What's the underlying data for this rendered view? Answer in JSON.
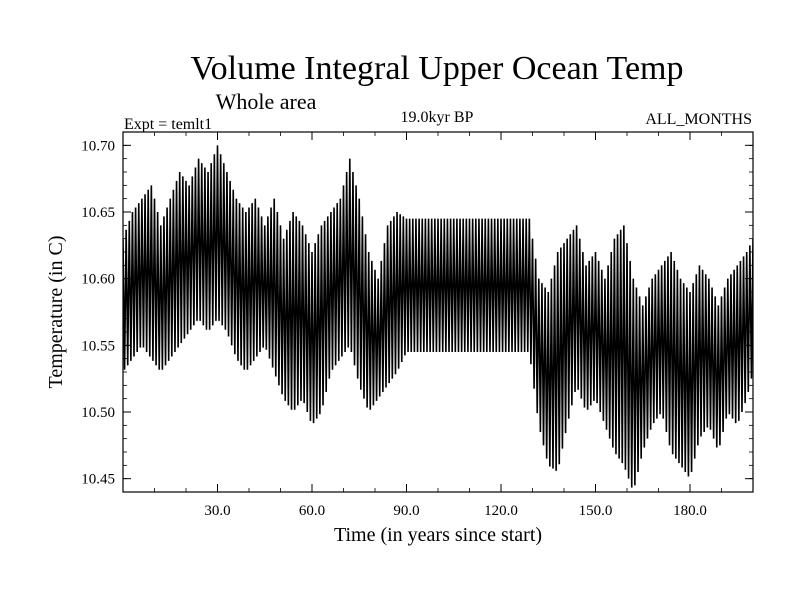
{
  "chart_data": {
    "type": "line",
    "title": "Volume Integral Upper Ocean Temp",
    "subtitle": "Whole area",
    "expt_label": "Expt = temlt1",
    "period_label": "19.0kyr BP",
    "months_label": "ALL_MONTHS",
    "xlabel": "Time (in years since start)",
    "ylabel": "Temperature (in C)",
    "xlim": [
      0,
      200
    ],
    "ylim": [
      10.44,
      10.71
    ],
    "grid": false,
    "legend": "none",
    "line_color": "#000000",
    "x_ticks": [
      {
        "value": 30,
        "label": "30.0"
      },
      {
        "value": 60,
        "label": "60.0"
      },
      {
        "value": 90,
        "label": "90.0"
      },
      {
        "value": 120,
        "label": "120.0"
      },
      {
        "value": 150,
        "label": "150.0"
      },
      {
        "value": 180,
        "label": "180.0"
      }
    ],
    "y_ticks": [
      {
        "value": 10.45,
        "label": "10.45"
      },
      {
        "value": 10.5,
        "label": "10.50"
      },
      {
        "value": 10.55,
        "label": "10.55"
      },
      {
        "value": 10.6,
        "label": "10.60"
      },
      {
        "value": 10.65,
        "label": "10.65"
      },
      {
        "value": 10.7,
        "label": "10.70"
      }
    ],
    "x": [
      0,
      3,
      6,
      9,
      12,
      15,
      18,
      21,
      24,
      27,
      30,
      33,
      36,
      39,
      42,
      45,
      48,
      51,
      54,
      57,
      60,
      63,
      66,
      69,
      72,
      75,
      78,
      81,
      84,
      87,
      90,
      93,
      96,
      99,
      102,
      105,
      108,
      111,
      114,
      117,
      120,
      123,
      126,
      129,
      132,
      135,
      138,
      141,
      144,
      147,
      150,
      153,
      156,
      159,
      162,
      165,
      168,
      171,
      174,
      177,
      180,
      183,
      186,
      189,
      192,
      195,
      198,
      200
    ],
    "y_max": [
      10.63,
      10.65,
      10.66,
      10.67,
      10.64,
      10.66,
      10.68,
      10.67,
      10.69,
      10.68,
      10.7,
      10.68,
      10.66,
      10.65,
      10.66,
      10.64,
      10.66,
      10.63,
      10.65,
      10.64,
      10.62,
      10.64,
      10.65,
      10.66,
      10.69,
      10.66,
      10.62,
      10.6,
      10.64,
      10.65,
      10.645,
      10.645,
      10.645,
      10.645,
      10.645,
      10.645,
      10.645,
      10.645,
      10.645,
      10.645,
      10.645,
      10.645,
      10.645,
      10.645,
      10.6,
      10.59,
      10.62,
      10.63,
      10.64,
      10.61,
      10.62,
      10.6,
      10.63,
      10.64,
      10.6,
      10.58,
      10.6,
      10.61,
      10.62,
      10.6,
      10.59,
      10.61,
      10.6,
      10.58,
      10.6,
      10.61,
      10.62,
      10.63
    ],
    "y_min": [
      10.53,
      10.54,
      10.55,
      10.54,
      10.53,
      10.54,
      10.55,
      10.56,
      10.57,
      10.56,
      10.57,
      10.56,
      10.54,
      10.53,
      10.54,
      10.55,
      10.53,
      10.51,
      10.5,
      10.51,
      10.49,
      10.5,
      10.53,
      10.54,
      10.55,
      10.52,
      10.5,
      10.51,
      10.52,
      10.53,
      10.545,
      10.545,
      10.545,
      10.545,
      10.545,
      10.545,
      10.545,
      10.545,
      10.545,
      10.545,
      10.545,
      10.545,
      10.545,
      10.545,
      10.49,
      10.46,
      10.455,
      10.49,
      10.52,
      10.5,
      10.51,
      10.49,
      10.47,
      10.46,
      10.44,
      10.47,
      10.49,
      10.5,
      10.47,
      10.46,
      10.45,
      10.48,
      10.49,
      10.47,
      10.5,
      10.49,
      10.51,
      10.53
    ]
  }
}
